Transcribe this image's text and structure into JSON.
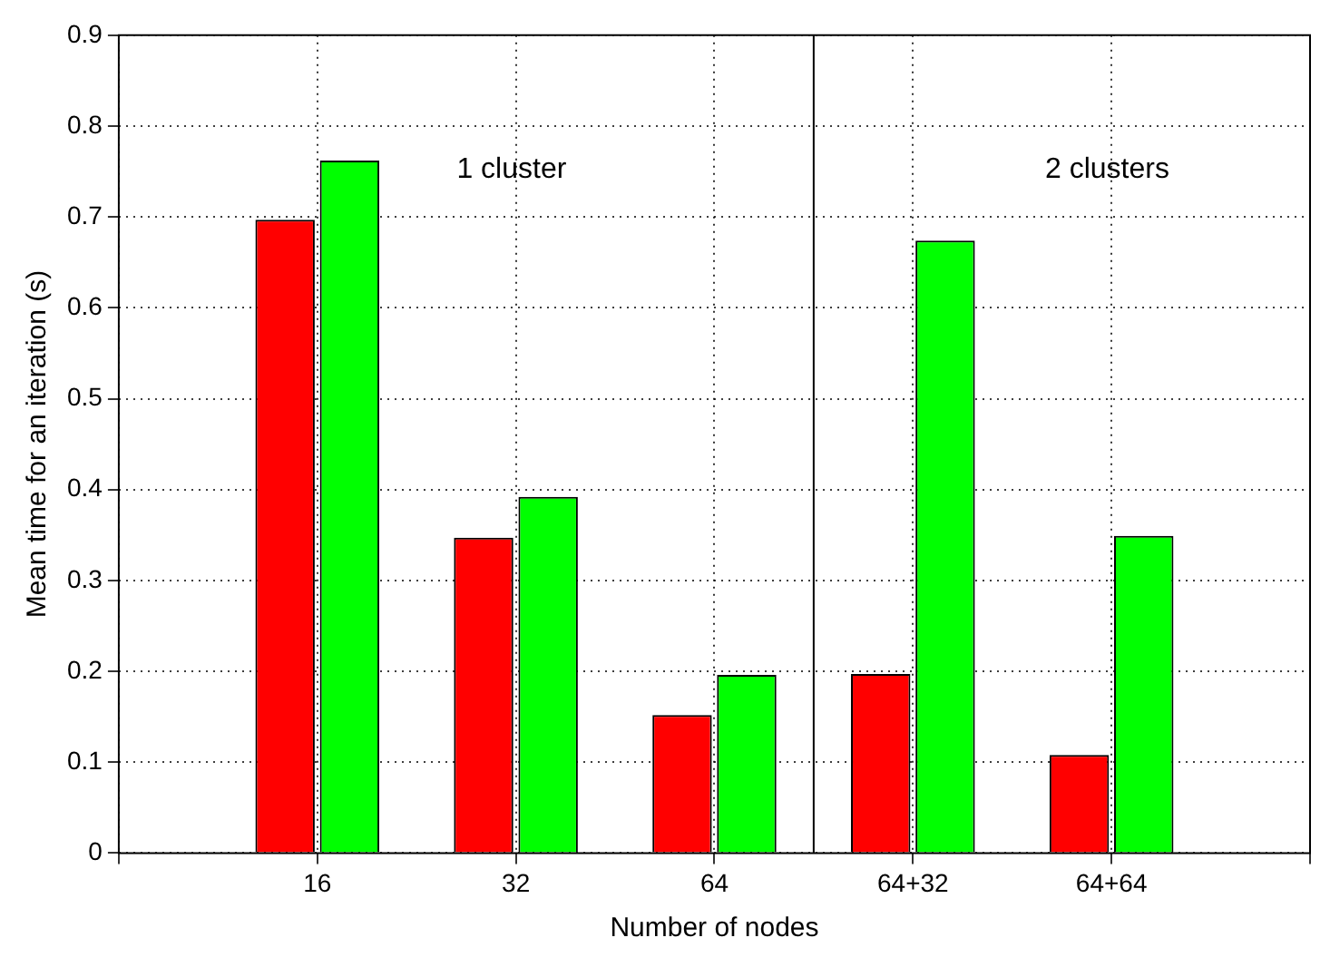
{
  "chart_data": {
    "type": "bar",
    "xlabel": "Number of nodes",
    "ylabel": "Mean time for an iteration (s)",
    "categories": [
      null,
      "16",
      "32",
      "64",
      "64+32",
      "64+64",
      null
    ],
    "ylim": [
      0,
      0.9
    ],
    "yticks": [
      0,
      0.1,
      0.2,
      0.3,
      0.4,
      0.5,
      0.6,
      0.7,
      0.8,
      0.9
    ],
    "series": [
      {
        "color": "#ff0000",
        "values": [
          null,
          0.697,
          0.347,
          0.152,
          0.197,
          0.108,
          null
        ]
      },
      {
        "color": "#00ff00",
        "values": [
          null,
          0.762,
          0.392,
          0.196,
          0.674,
          0.349,
          null
        ]
      }
    ],
    "ref_lines": [
      {
        "axis": "x",
        "value": "64+32",
        "color": "#000000",
        "line_style": "solid"
      }
    ],
    "annotations": [
      "1 cluster",
      "2 clusters"
    ],
    "grid": true
  }
}
